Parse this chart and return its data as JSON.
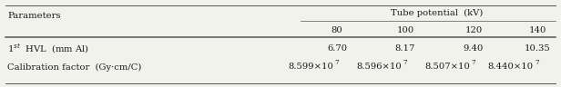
{
  "title": "Tube potential  (kV)",
  "col_header_label": "Parameters",
  "col_headers": [
    "80",
    "100",
    "120",
    "140"
  ],
  "row1_label": "1$^{st}$  HVL  (mm Al)",
  "row2_label": "Calibration factor  (Gy·cm/C)",
  "row1_data": [
    "6.70",
    "8.17",
    "9.40",
    "10.35"
  ],
  "row2_data": [
    "8.599×10$^{7}$",
    "8.596×10$^{7}$",
    "8.507×10$^{7}$",
    "8.440×10$^{7}$"
  ],
  "bg_color": "#f2f2ed",
  "text_color": "#1a1a1a",
  "font_size": 7.2,
  "line_color": "#555555"
}
